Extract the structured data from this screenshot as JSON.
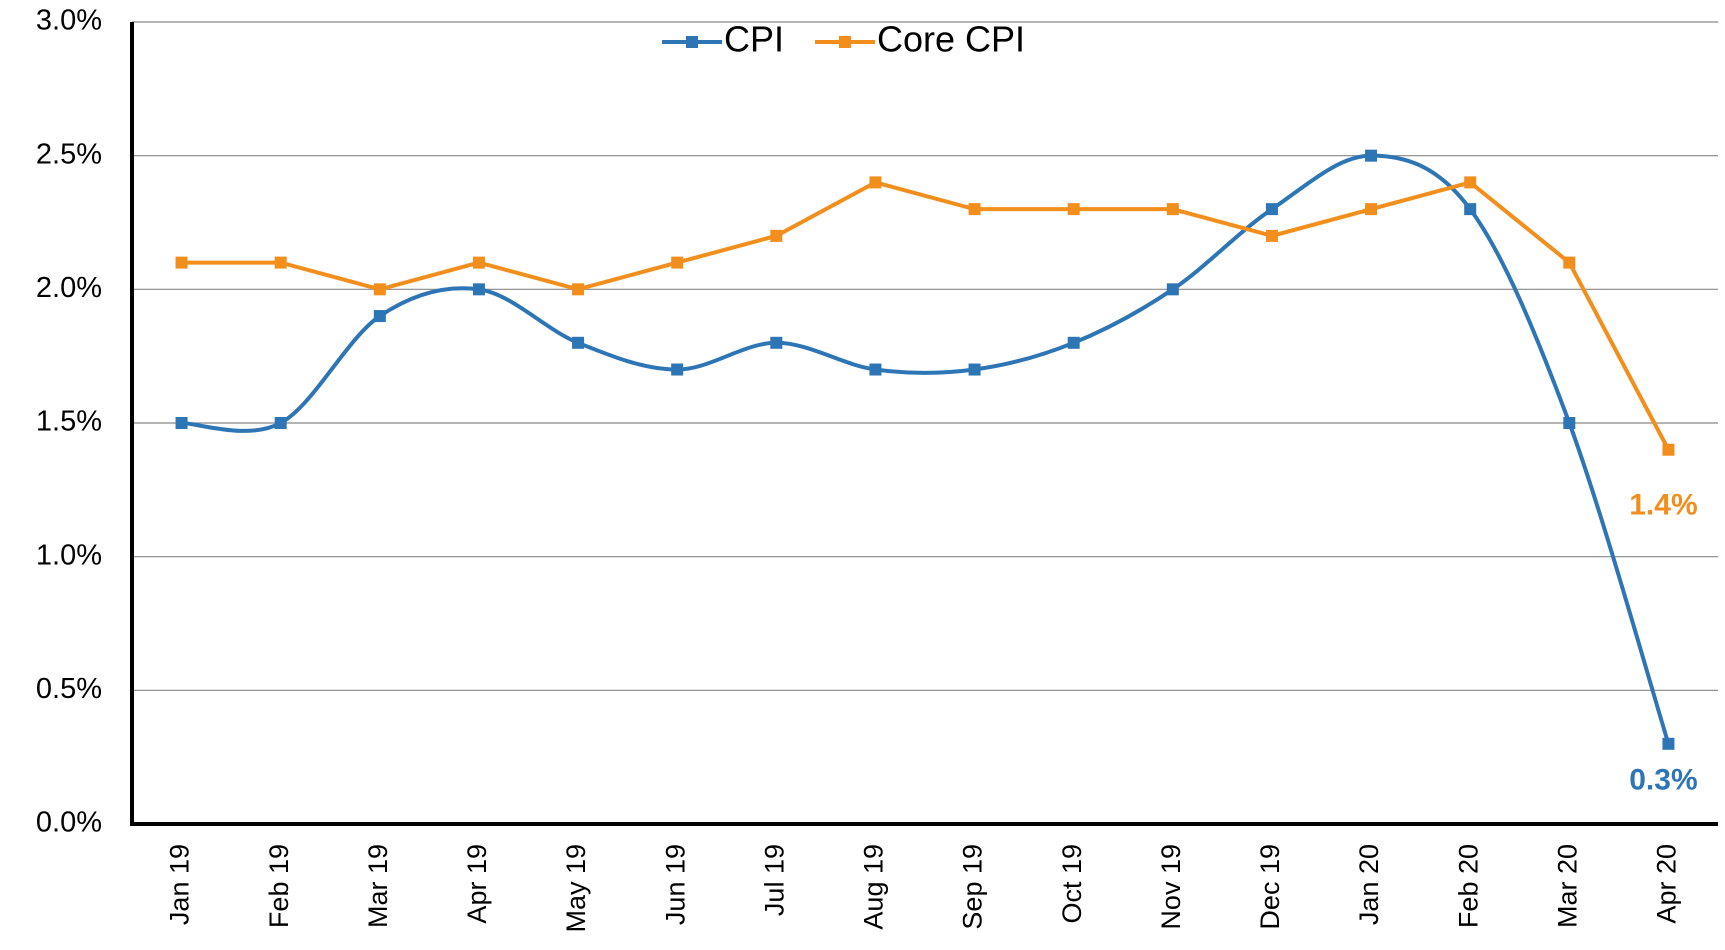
{
  "chart_data": {
    "type": "line",
    "categories": [
      "Jan 19",
      "Feb 19",
      "Mar 19",
      "Apr 19",
      "May 19",
      "Jun 19",
      "Jul 19",
      "Aug 19",
      "Sep 19",
      "Oct 19",
      "Nov 19",
      "Dec 19",
      "Jan 20",
      "Feb 20",
      "Mar 20",
      "Apr 20"
    ],
    "series": [
      {
        "name": "CPI",
        "color": "#2e75b6",
        "smooth": true,
        "values": [
          1.5,
          1.5,
          1.9,
          2.0,
          1.8,
          1.7,
          1.8,
          1.7,
          1.7,
          1.8,
          2.0,
          2.3,
          2.5,
          2.3,
          1.5,
          0.3
        ],
        "value_labels": [
          null,
          null,
          null,
          null,
          null,
          null,
          null,
          null,
          null,
          null,
          null,
          null,
          null,
          null,
          null,
          "0.3%"
        ]
      },
      {
        "name": "Core CPI",
        "color": "#f28e1c",
        "smooth": false,
        "values": [
          2.1,
          2.1,
          2.0,
          2.1,
          2.0,
          2.1,
          2.2,
          2.4,
          2.3,
          2.3,
          2.3,
          2.2,
          2.3,
          2.4,
          2.1,
          1.4
        ],
        "value_labels": [
          null,
          null,
          null,
          null,
          null,
          null,
          null,
          null,
          null,
          null,
          null,
          null,
          null,
          null,
          null,
          "1.4%"
        ]
      }
    ],
    "ylim": [
      0,
      3
    ],
    "yticks": [
      {
        "value": 0,
        "label": "0.0%"
      },
      {
        "value": 0.5,
        "label": "0.5%"
      },
      {
        "value": 1,
        "label": "1.0%"
      },
      {
        "value": 1.5,
        "label": "1.5%"
      },
      {
        "value": 2,
        "label": "2.0%"
      },
      {
        "value": 2.5,
        "label": "2.5%"
      },
      {
        "value": 3,
        "label": "3.0%"
      }
    ],
    "grid": true,
    "legend": "top"
  }
}
